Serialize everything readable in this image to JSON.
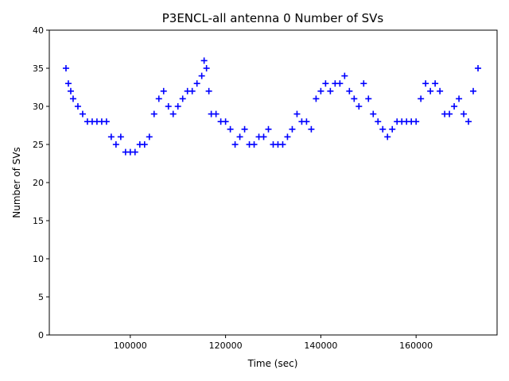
{
  "chart_data": {
    "type": "scatter",
    "title": "P3ENCL-all antenna 0 Number of SVs",
    "xlabel": "Time (sec)",
    "ylabel": "Number of SVs",
    "xlim": [
      83000,
      177000
    ],
    "ylim": [
      0,
      40
    ],
    "xticks": [
      100000,
      120000,
      140000,
      160000
    ],
    "xtick_labels": [
      "100000",
      "120000",
      "140000",
      "160000"
    ],
    "yticks": [
      0,
      5,
      10,
      15,
      20,
      25,
      30,
      35,
      40
    ],
    "ytick_labels": [
      "0",
      "5",
      "10",
      "15",
      "20",
      "25",
      "30",
      "35",
      "40"
    ],
    "grid": false,
    "marker": "+",
    "color": "#0000ff",
    "series": [
      {
        "x": [
          86500,
          87000,
          87500,
          88000,
          89000,
          90000,
          91000,
          92000,
          93000,
          94000,
          95000,
          96000,
          97000,
          98000,
          99000,
          100000,
          101000,
          102000,
          103000,
          104000,
          105000,
          106000,
          107000,
          108000,
          109000,
          110000,
          111000,
          112000,
          113000,
          114000,
          115000,
          115500,
          116000,
          116500,
          117000,
          118000,
          119000,
          120000,
          121000,
          122000,
          123000,
          124000,
          125000,
          126000,
          127000,
          128000,
          129000,
          130000,
          131000,
          132000,
          133000,
          134000,
          135000,
          136000,
          137000,
          138000,
          139000,
          140000,
          141000,
          142000,
          143000,
          144000,
          145000,
          146000,
          147000,
          148000,
          149000,
          150000,
          151000,
          152000,
          153000,
          154000,
          155000,
          156000,
          157000,
          158000,
          159000,
          160000,
          161000,
          162000,
          163000,
          164000,
          165000,
          166000,
          167000,
          168000,
          169000,
          170000,
          171000,
          172000,
          173000
        ],
        "y": [
          35,
          33,
          32,
          31,
          30,
          29,
          28,
          28,
          28,
          28,
          28,
          26,
          25,
          26,
          24,
          24,
          24,
          25,
          25,
          26,
          29,
          31,
          32,
          30,
          29,
          30,
          31,
          32,
          32,
          33,
          34,
          36,
          35,
          32,
          29,
          29,
          28,
          28,
          27,
          25,
          26,
          27,
          25,
          25,
          26,
          26,
          27,
          25,
          25,
          25,
          26,
          27,
          29,
          28,
          28,
          27,
          31,
          32,
          33,
          32,
          33,
          33,
          34,
          32,
          31,
          30,
          33,
          31,
          29,
          28,
          27,
          26,
          27,
          28,
          28,
          28,
          28,
          28,
          31,
          33,
          32,
          33,
          32,
          29,
          29,
          30,
          31,
          29,
          28,
          32,
          35
        ]
      }
    ]
  }
}
